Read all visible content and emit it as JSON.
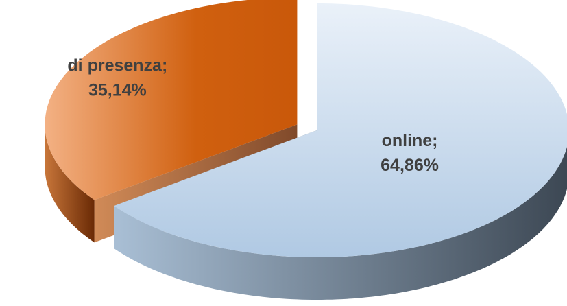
{
  "chart_data": {
    "type": "pie",
    "categories": [
      "online;",
      "di presenza;"
    ],
    "values": [
      64.86,
      35.14
    ],
    "value_labels": [
      "64,86%",
      "35,14%"
    ],
    "colors": [
      "#bcd3ea",
      "#d9620f"
    ],
    "three_d": true,
    "exploded": [
      false,
      true
    ]
  }
}
